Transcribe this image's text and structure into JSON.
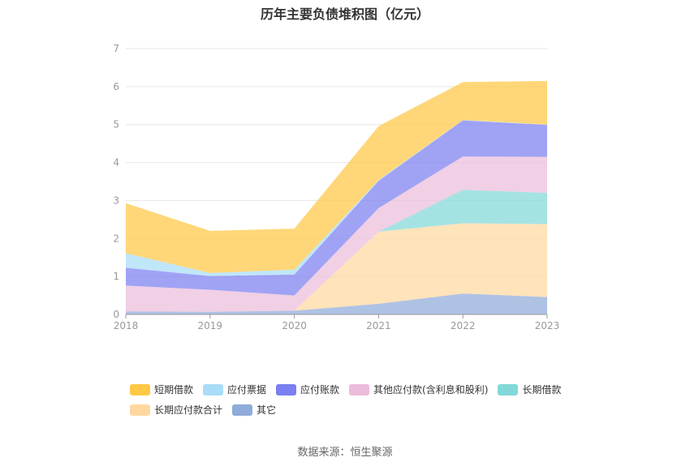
{
  "chart_data": {
    "type": "area",
    "stacked": true,
    "title": "历年主要负债堆积图（亿元）",
    "categories": [
      "2018",
      "2019",
      "2020",
      "2021",
      "2022",
      "2023"
    ],
    "ylim": [
      0,
      7
    ],
    "yticks": [
      0,
      1,
      2,
      3,
      4,
      5,
      6,
      7
    ],
    "grid": true,
    "legend_position": "bottom",
    "series": [
      {
        "name": "其它",
        "color": "#8fabd9",
        "values": [
          0.08,
          0.07,
          0.1,
          0.28,
          0.55,
          0.46
        ]
      },
      {
        "name": "长期应付款合计",
        "color": "#ffd8a0",
        "values": [
          0,
          0,
          0,
          1.9,
          1.85,
          1.92
        ]
      },
      {
        "name": "长期借款",
        "color": "#82d8d8",
        "values": [
          0,
          0,
          0,
          0,
          0.88,
          0.82
        ]
      },
      {
        "name": "其他应付款(含利息和股利)",
        "color": "#ebbcdb",
        "values": [
          0.68,
          0.58,
          0.4,
          0.62,
          0.88,
          0.95
        ]
      },
      {
        "name": "应付账款",
        "color": "#7b7ff0",
        "values": [
          0.47,
          0.36,
          0.55,
          0.72,
          0.95,
          0.84
        ]
      },
      {
        "name": "应付票据",
        "color": "#a8dcf8",
        "values": [
          0.38,
          0.08,
          0.13,
          0.02,
          0.01,
          0.01
        ]
      },
      {
        "name": "短期借款",
        "color": "#ffc845",
        "values": [
          1.32,
          1.11,
          1.08,
          1.42,
          1.0,
          1.15
        ]
      }
    ],
    "legend_order": [
      "短期借款",
      "应付票据",
      "应付账款",
      "其他应付款(含利息和股利)",
      "长期借款",
      "长期应付款合计",
      "其它"
    ]
  },
  "source": "数据来源：恒生聚源"
}
